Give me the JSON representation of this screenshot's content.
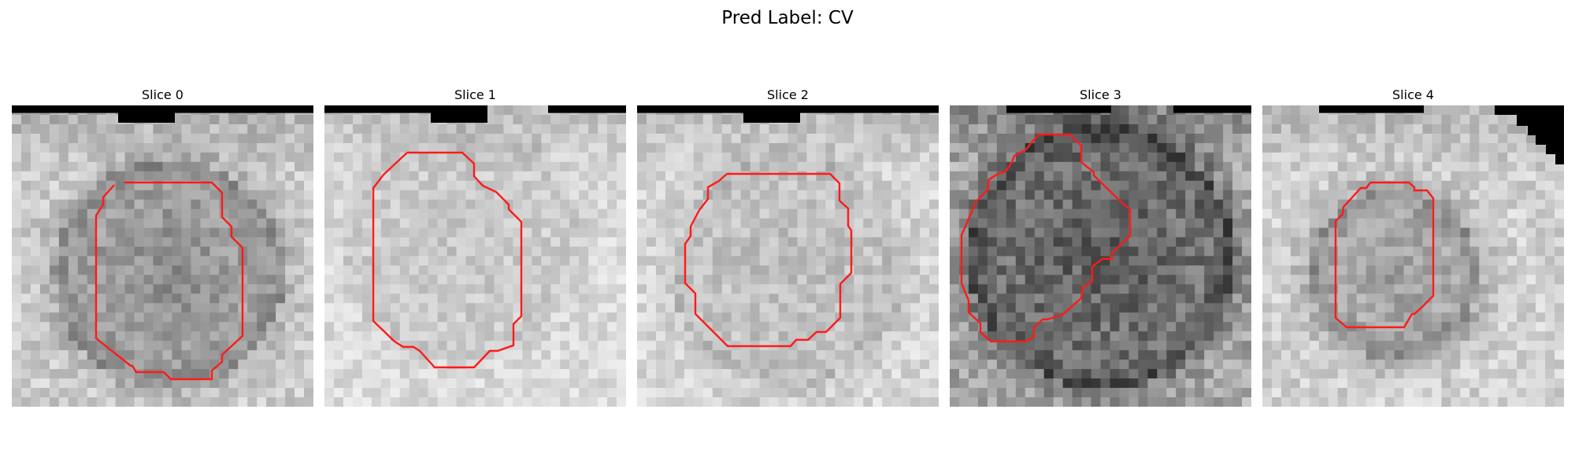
{
  "figure": {
    "title": "Pred Label: CV"
  },
  "panels": [
    {
      "title": "Slice 0"
    },
    {
      "title": "Slice 1"
    },
    {
      "title": "Slice 2"
    },
    {
      "title": "Slice 3"
    },
    {
      "title": "Slice 4"
    }
  ],
  "style": {
    "contour_color": "#ff1a1a",
    "mask_color": "#000000"
  }
}
